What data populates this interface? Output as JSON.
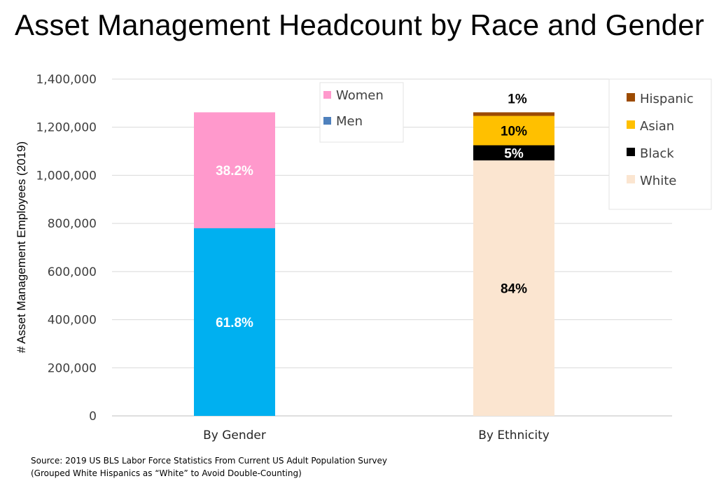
{
  "title": "Asset Management Headcount by Race and Gender",
  "source": {
    "line1": "Source: 2019 US BLS Labor Force Statistics From Current US Adult Population Survey",
    "line2": "(Grouped White Hispanics as “White” to Avoid Double-Counting)"
  },
  "chart_data": {
    "type": "bar",
    "stacked": true,
    "title": "Asset Management Headcount by Race and Gender",
    "xlabel": "",
    "ylabel": "# Asset Management Employees (2019)",
    "ylim": [
      0,
      1400000
    ],
    "yticks": [
      "0",
      "200,000",
      "400,000",
      "600,000",
      "800,000",
      "1,000,000",
      "1,200,000",
      "1,400,000"
    ],
    "grid": true,
    "categories": [
      "By Gender",
      "By Ethnicity"
    ],
    "bars": [
      {
        "category": "By Gender",
        "segments": [
          {
            "name": "Men",
            "value": 780000,
            "label": "61.8%",
            "color": "#00b0f0",
            "label_color": "#ffffff"
          },
          {
            "name": "Women",
            "value": 482000,
            "label": "38.2%",
            "color": "#ff99cc",
            "label_color": "#ffffff"
          }
        ],
        "legend": {
          "placement": "top-center",
          "entries": [
            {
              "name": "Women",
              "color": "#ff99cc"
            },
            {
              "name": "Men",
              "color": "#4f81bd"
            }
          ]
        }
      },
      {
        "category": "By Ethnicity",
        "segments": [
          {
            "name": "White",
            "value": 1062000,
            "label": "84%",
            "color": "#fbe5d0",
            "label_color": "#000000"
          },
          {
            "name": "Black",
            "value": 63000,
            "label": "5%",
            "color": "#000000",
            "label_color": "#ffffff"
          },
          {
            "name": "Asian",
            "value": 122000,
            "label": "10%",
            "color": "#ffc000",
            "label_color": "#000000"
          },
          {
            "name": "Hispanic",
            "value": 15000,
            "label": "1%",
            "color": "#9c4a00",
            "label_color": "#000000"
          }
        ],
        "legend": {
          "placement": "top-right",
          "entries": [
            {
              "name": "Hispanic",
              "color": "#9c4a00"
            },
            {
              "name": "Asian",
              "color": "#ffc000"
            },
            {
              "name": "Black",
              "color": "#000000"
            },
            {
              "name": "White",
              "color": "#fbe5d0"
            }
          ]
        }
      }
    ]
  }
}
